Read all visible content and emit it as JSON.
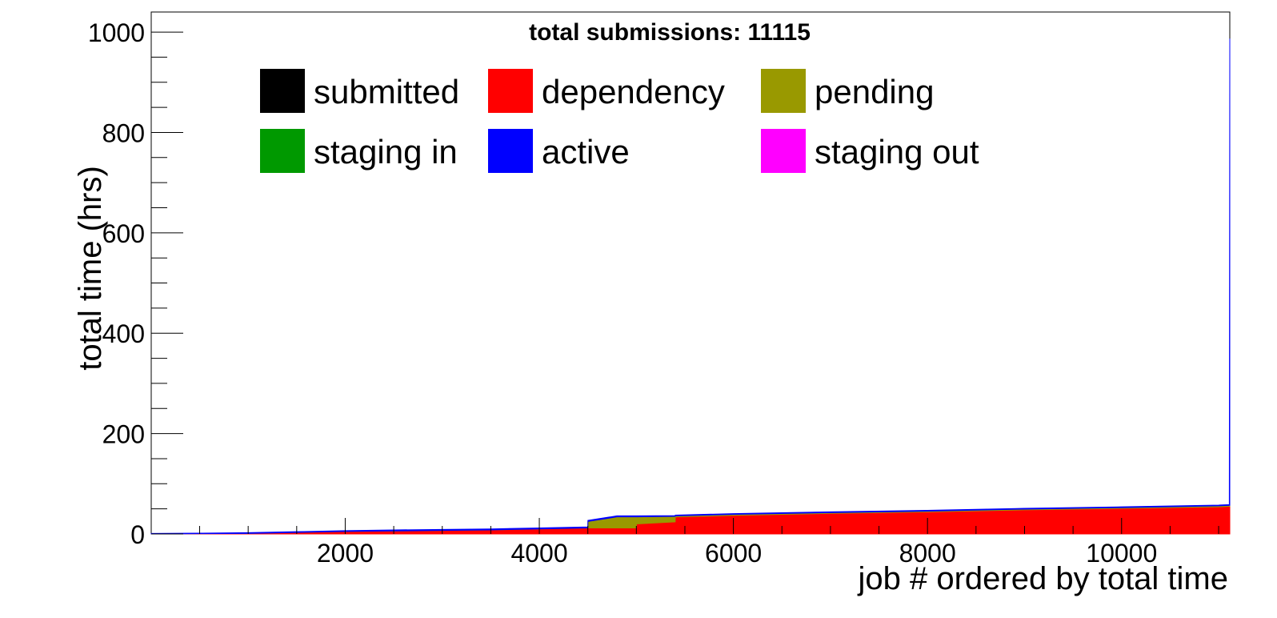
{
  "chart_data": {
    "type": "area",
    "stacked": true,
    "title": "total submissions: 11115",
    "xlabel": "job # ordered by total time",
    "ylabel": "total time (hrs)",
    "xlim": [
      1,
      11115
    ],
    "ylim": [
      0,
      1040
    ],
    "x_ticks": [
      2000,
      4000,
      6000,
      8000,
      10000
    ],
    "y_ticks": [
      0,
      200,
      400,
      600,
      800,
      1000
    ],
    "legend_position": "top-center",
    "legend": [
      {
        "name": "submitted",
        "color": "#000000"
      },
      {
        "name": "dependency",
        "color": "#ff0000"
      },
      {
        "name": "pending",
        "color": "#999900"
      },
      {
        "name": "staging in",
        "color": "#009900"
      },
      {
        "name": "active",
        "color": "#0000ff"
      },
      {
        "name": "staging out",
        "color": "#ff00ff"
      }
    ],
    "x": [
      1,
      500,
      1000,
      1500,
      2000,
      2500,
      3000,
      3500,
      4000,
      4500,
      4501,
      4800,
      5000,
      5001,
      5400,
      5401,
      6000,
      7000,
      8000,
      9000,
      10000,
      11000,
      11110,
      11115
    ],
    "series": [
      {
        "name": "dependency",
        "color": "#ff0000",
        "values": [
          0,
          0.5,
          1,
          3,
          5,
          6,
          7,
          8,
          10,
          12,
          12,
          12,
          12,
          20,
          24,
          34,
          37,
          41,
          44,
          48,
          51,
          54,
          55,
          55
        ]
      },
      {
        "name": "pending",
        "color": "#999900",
        "values": [
          0,
          0,
          0,
          0,
          0,
          0,
          0,
          0,
          0,
          0,
          13,
          22,
          22,
          14,
          11,
          2,
          2,
          1.5,
          1.5,
          1.5,
          1.5,
          2,
          2,
          2
        ]
      },
      {
        "name": "active",
        "color": "#0000ff",
        "values": [
          1,
          1,
          1.5,
          1.5,
          1.5,
          2,
          2,
          2,
          2,
          2,
          2,
          2,
          2,
          2,
          1.5,
          1.5,
          1.5,
          1.5,
          1.5,
          1.5,
          1.5,
          1.5,
          1.5,
          930
        ]
      }
    ]
  }
}
